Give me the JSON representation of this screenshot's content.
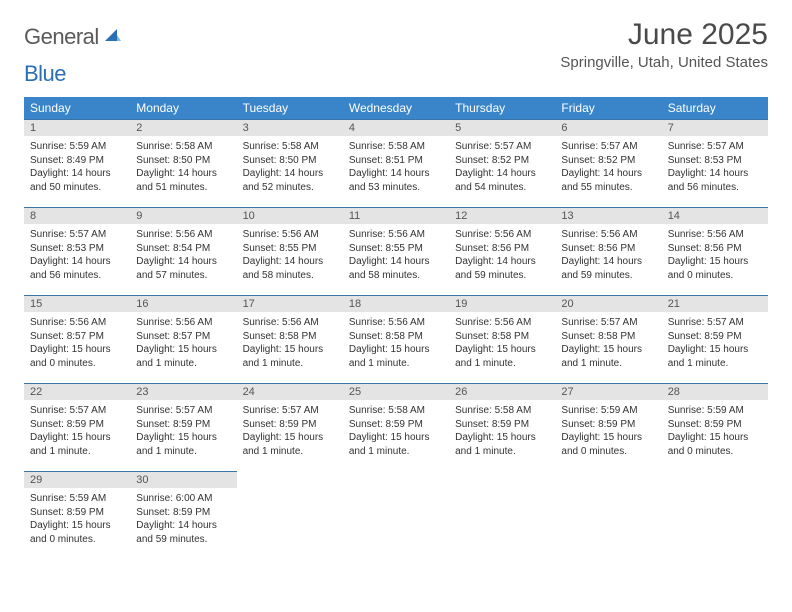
{
  "brand": {
    "word1": "General",
    "word2": "Blue"
  },
  "colors": {
    "header_bg": "#3a85c9",
    "header_text": "#ffffff",
    "rule": "#3a74a8",
    "daynum_bg": "#e4e4e4",
    "text": "#333333",
    "brand_gray": "#5a5a5a",
    "brand_blue": "#2a6fb5"
  },
  "title": "June 2025",
  "location": "Springville, Utah, United States",
  "weekdays": [
    "Sunday",
    "Monday",
    "Tuesday",
    "Wednesday",
    "Thursday",
    "Friday",
    "Saturday"
  ],
  "weeks": [
    [
      {
        "n": "1",
        "sr": "Sunrise: 5:59 AM",
        "ss": "Sunset: 8:49 PM",
        "d1": "Daylight: 14 hours",
        "d2": "and 50 minutes."
      },
      {
        "n": "2",
        "sr": "Sunrise: 5:58 AM",
        "ss": "Sunset: 8:50 PM",
        "d1": "Daylight: 14 hours",
        "d2": "and 51 minutes."
      },
      {
        "n": "3",
        "sr": "Sunrise: 5:58 AM",
        "ss": "Sunset: 8:50 PM",
        "d1": "Daylight: 14 hours",
        "d2": "and 52 minutes."
      },
      {
        "n": "4",
        "sr": "Sunrise: 5:58 AM",
        "ss": "Sunset: 8:51 PM",
        "d1": "Daylight: 14 hours",
        "d2": "and 53 minutes."
      },
      {
        "n": "5",
        "sr": "Sunrise: 5:57 AM",
        "ss": "Sunset: 8:52 PM",
        "d1": "Daylight: 14 hours",
        "d2": "and 54 minutes."
      },
      {
        "n": "6",
        "sr": "Sunrise: 5:57 AM",
        "ss": "Sunset: 8:52 PM",
        "d1": "Daylight: 14 hours",
        "d2": "and 55 minutes."
      },
      {
        "n": "7",
        "sr": "Sunrise: 5:57 AM",
        "ss": "Sunset: 8:53 PM",
        "d1": "Daylight: 14 hours",
        "d2": "and 56 minutes."
      }
    ],
    [
      {
        "n": "8",
        "sr": "Sunrise: 5:57 AM",
        "ss": "Sunset: 8:53 PM",
        "d1": "Daylight: 14 hours",
        "d2": "and 56 minutes."
      },
      {
        "n": "9",
        "sr": "Sunrise: 5:56 AM",
        "ss": "Sunset: 8:54 PM",
        "d1": "Daylight: 14 hours",
        "d2": "and 57 minutes."
      },
      {
        "n": "10",
        "sr": "Sunrise: 5:56 AM",
        "ss": "Sunset: 8:55 PM",
        "d1": "Daylight: 14 hours",
        "d2": "and 58 minutes."
      },
      {
        "n": "11",
        "sr": "Sunrise: 5:56 AM",
        "ss": "Sunset: 8:55 PM",
        "d1": "Daylight: 14 hours",
        "d2": "and 58 minutes."
      },
      {
        "n": "12",
        "sr": "Sunrise: 5:56 AM",
        "ss": "Sunset: 8:56 PM",
        "d1": "Daylight: 14 hours",
        "d2": "and 59 minutes."
      },
      {
        "n": "13",
        "sr": "Sunrise: 5:56 AM",
        "ss": "Sunset: 8:56 PM",
        "d1": "Daylight: 14 hours",
        "d2": "and 59 minutes."
      },
      {
        "n": "14",
        "sr": "Sunrise: 5:56 AM",
        "ss": "Sunset: 8:56 PM",
        "d1": "Daylight: 15 hours",
        "d2": "and 0 minutes."
      }
    ],
    [
      {
        "n": "15",
        "sr": "Sunrise: 5:56 AM",
        "ss": "Sunset: 8:57 PM",
        "d1": "Daylight: 15 hours",
        "d2": "and 0 minutes."
      },
      {
        "n": "16",
        "sr": "Sunrise: 5:56 AM",
        "ss": "Sunset: 8:57 PM",
        "d1": "Daylight: 15 hours",
        "d2": "and 1 minute."
      },
      {
        "n": "17",
        "sr": "Sunrise: 5:56 AM",
        "ss": "Sunset: 8:58 PM",
        "d1": "Daylight: 15 hours",
        "d2": "and 1 minute."
      },
      {
        "n": "18",
        "sr": "Sunrise: 5:56 AM",
        "ss": "Sunset: 8:58 PM",
        "d1": "Daylight: 15 hours",
        "d2": "and 1 minute."
      },
      {
        "n": "19",
        "sr": "Sunrise: 5:56 AM",
        "ss": "Sunset: 8:58 PM",
        "d1": "Daylight: 15 hours",
        "d2": "and 1 minute."
      },
      {
        "n": "20",
        "sr": "Sunrise: 5:57 AM",
        "ss": "Sunset: 8:58 PM",
        "d1": "Daylight: 15 hours",
        "d2": "and 1 minute."
      },
      {
        "n": "21",
        "sr": "Sunrise: 5:57 AM",
        "ss": "Sunset: 8:59 PM",
        "d1": "Daylight: 15 hours",
        "d2": "and 1 minute."
      }
    ],
    [
      {
        "n": "22",
        "sr": "Sunrise: 5:57 AM",
        "ss": "Sunset: 8:59 PM",
        "d1": "Daylight: 15 hours",
        "d2": "and 1 minute."
      },
      {
        "n": "23",
        "sr": "Sunrise: 5:57 AM",
        "ss": "Sunset: 8:59 PM",
        "d1": "Daylight: 15 hours",
        "d2": "and 1 minute."
      },
      {
        "n": "24",
        "sr": "Sunrise: 5:57 AM",
        "ss": "Sunset: 8:59 PM",
        "d1": "Daylight: 15 hours",
        "d2": "and 1 minute."
      },
      {
        "n": "25",
        "sr": "Sunrise: 5:58 AM",
        "ss": "Sunset: 8:59 PM",
        "d1": "Daylight: 15 hours",
        "d2": "and 1 minute."
      },
      {
        "n": "26",
        "sr": "Sunrise: 5:58 AM",
        "ss": "Sunset: 8:59 PM",
        "d1": "Daylight: 15 hours",
        "d2": "and 1 minute."
      },
      {
        "n": "27",
        "sr": "Sunrise: 5:59 AM",
        "ss": "Sunset: 8:59 PM",
        "d1": "Daylight: 15 hours",
        "d2": "and 0 minutes."
      },
      {
        "n": "28",
        "sr": "Sunrise: 5:59 AM",
        "ss": "Sunset: 8:59 PM",
        "d1": "Daylight: 15 hours",
        "d2": "and 0 minutes."
      }
    ],
    [
      {
        "n": "29",
        "sr": "Sunrise: 5:59 AM",
        "ss": "Sunset: 8:59 PM",
        "d1": "Daylight: 15 hours",
        "d2": "and 0 minutes."
      },
      {
        "n": "30",
        "sr": "Sunrise: 6:00 AM",
        "ss": "Sunset: 8:59 PM",
        "d1": "Daylight: 14 hours",
        "d2": "and 59 minutes."
      },
      null,
      null,
      null,
      null,
      null
    ]
  ]
}
